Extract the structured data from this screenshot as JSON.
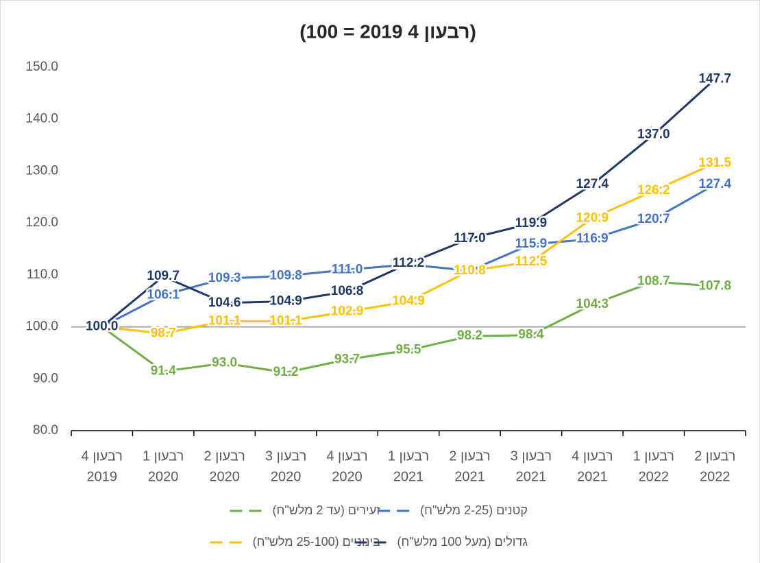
{
  "chart_data": {
    "type": "line",
    "title": "(רבעון 4 2019 = 100)",
    "categories": [
      [
        "רבעון 4",
        "2019"
      ],
      [
        "רבעון 1",
        "2020"
      ],
      [
        "רבעון 2",
        "2020"
      ],
      [
        "רבעון 3",
        "2020"
      ],
      [
        "רבעון 4",
        "2020"
      ],
      [
        "רבעון 1",
        "2021"
      ],
      [
        "רבעון 2",
        "2021"
      ],
      [
        "רבעון 3",
        "2021"
      ],
      [
        "רבעון 4",
        "2021"
      ],
      [
        "רבעון 1",
        "2022"
      ],
      [
        "רבעון 2",
        "2022"
      ]
    ],
    "series": [
      {
        "name": "זעירים (עד 2 מלש\"ח)",
        "color": "#70ad47",
        "values": [
          100,
          91.4,
          93.0,
          91.2,
          93.7,
          95.5,
          98.2,
          98.4,
          104.3,
          108.7,
          107.8
        ],
        "value_labels": [
          "100.0",
          "91.4",
          "93.0",
          "91.2",
          "93.7",
          "95.5",
          "98.2",
          "98.4",
          "104.3",
          "108.7",
          "107.8"
        ]
      },
      {
        "name": "קטנים (2-25 מלש\"ח)",
        "color": "#4472c4",
        "values": [
          100,
          106.1,
          109.3,
          109.8,
          111.0,
          112.0,
          110.8,
          115.9,
          116.9,
          120.7,
          127.4
        ],
        "value_labels": [
          "100.0",
          "106.1",
          "109.3",
          "109.8",
          "111.0",
          "112.0",
          "110.8",
          "115.9",
          "116.9",
          "120.7",
          "127.4"
        ]
      },
      {
        "name": "בינוניים (25-100 מלש\"ח)",
        "color": "#ffc000",
        "values": [
          100,
          98.7,
          101.1,
          101.1,
          102.9,
          104.9,
          110.8,
          112.5,
          120.9,
          126.2,
          131.5
        ],
        "value_labels": [
          "100.0",
          "98.7",
          "101.1",
          "101.1",
          "102.9",
          "104.9",
          "110.8",
          "112.5",
          "120.9",
          "126.2",
          "131.5"
        ]
      },
      {
        "name": "גדולים (מעל 100 מלש\"ח)",
        "color": "#203864",
        "values": [
          100,
          109.7,
          104.6,
          104.9,
          106.8,
          112.2,
          117.0,
          119.9,
          127.4,
          137.0,
          147.7
        ],
        "value_labels": [
          "100.0",
          "109.7",
          "104.6",
          "104.9",
          "106.8",
          "112.2",
          "117.0",
          "119.9",
          "127.4",
          "137.0",
          "147.7"
        ]
      }
    ],
    "ylim": [
      80,
      150
    ],
    "yticks": [
      {
        "value": 80,
        "label": "80.0"
      },
      {
        "value": 90,
        "label": "90.0"
      },
      {
        "value": 100,
        "label": "100.0"
      },
      {
        "value": 110,
        "label": "110.0"
      },
      {
        "value": 120,
        "label": "120.0"
      },
      {
        "value": 130,
        "label": "130.0"
      },
      {
        "value": 140,
        "label": "140.0"
      },
      {
        "value": 150,
        "label": "150.0"
      }
    ],
    "reference_line": 100,
    "grid": false
  }
}
